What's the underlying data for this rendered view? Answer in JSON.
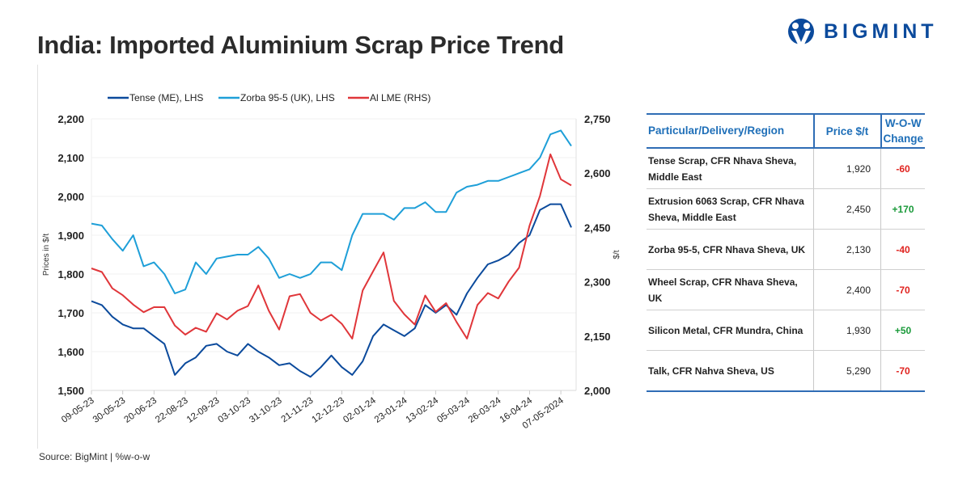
{
  "title": "India: Imported Aluminium Scrap Price Trend",
  "logo_text": "BIGMINT",
  "source": "Source: BigMint | %w-o-w",
  "colors": {
    "tense": "#0b4a9c",
    "zorba": "#1e9fd8",
    "lme": "#e0363a",
    "table_accent": "#2f6db5",
    "negative": "#e0231f",
    "positive": "#1a9a3a"
  },
  "chart_data": {
    "type": "line",
    "title": "",
    "ylabel_left": "Prices in $/t",
    "ylabel_right": "$/t",
    "ylim_left": [
      1500,
      2200
    ],
    "yticks_left": [
      "1,500",
      "1,600",
      "1,700",
      "1,800",
      "1,900",
      "2,000",
      "2,100",
      "2,200"
    ],
    "ylim_right": [
      2000,
      2750
    ],
    "yticks_right": [
      "2,000",
      "2,150",
      "2,300",
      "2,450",
      "2,600",
      "2,750"
    ],
    "x_tick_labels": [
      "09-05-23",
      "30-05-23",
      "20-06-23",
      "22-08-23",
      "12-09-23",
      "03-10-23",
      "31-10-23",
      "21-11-23",
      "12-12-23",
      "02-01-24",
      "23-01-24",
      "13-02-24",
      "05-03-24",
      "26-03-24",
      "16-04-24",
      "07-05-2024"
    ],
    "grid": true,
    "legend_position": "top",
    "series": [
      {
        "name": "Tense (ME), LHS",
        "axis": "left",
        "color": "#0b4a9c",
        "values": [
          1730,
          1720,
          1690,
          1670,
          1660,
          1660,
          1640,
          1620,
          1540,
          1570,
          1585,
          1615,
          1620,
          1600,
          1590,
          1620,
          1600,
          1585,
          1565,
          1570,
          1550,
          1535,
          1560,
          1590,
          1560,
          1540,
          1575,
          1640,
          1670,
          1655,
          1640,
          1660,
          1720,
          1700,
          1720,
          1695,
          1750,
          1790,
          1825,
          1835,
          1850,
          1880,
          1900,
          1965,
          1980,
          1980,
          1920
        ]
      },
      {
        "name": "Zorba 95-5 (UK), LHS",
        "axis": "left",
        "color": "#1e9fd8",
        "values": [
          1930,
          1925,
          1890,
          1860,
          1900,
          1820,
          1830,
          1800,
          1750,
          1760,
          1830,
          1800,
          1840,
          1845,
          1850,
          1850,
          1870,
          1840,
          1790,
          1800,
          1790,
          1800,
          1830,
          1830,
          1810,
          1900,
          1955,
          1955,
          1955,
          1940,
          1970,
          1970,
          1985,
          1960,
          1960,
          2010,
          2025,
          2030,
          2040,
          2040,
          2050,
          2060,
          2070,
          2100,
          2160,
          2170,
          2130
        ]
      },
      {
        "name": "Al LME (RHS)",
        "axis": "right",
        "color": "#e0363a",
        "values": [
          2337,
          2327,
          2282,
          2263,
          2237,
          2216,
          2230,
          2230,
          2179,
          2154,
          2173,
          2162,
          2213,
          2196,
          2220,
          2233,
          2290,
          2220,
          2168,
          2260,
          2266,
          2214,
          2193,
          2209,
          2184,
          2143,
          2276,
          2329,
          2381,
          2247,
          2210,
          2182,
          2262,
          2217,
          2241,
          2189,
          2143,
          2236,
          2269,
          2254,
          2301,
          2339,
          2455,
          2537,
          2652,
          2583,
          2566
        ]
      }
    ]
  },
  "table": {
    "headers": [
      "Particular/Delivery/Region",
      "Price $/t",
      "W-O-W Change"
    ],
    "rows": [
      {
        "item": "Tense Scrap, CFR Nhava Sheva, Middle East",
        "price": "1,920",
        "change": "-60"
      },
      {
        "item": "Extrusion 6063 Scrap, CFR Nhava Sheva, Middle East",
        "price": "2,450",
        "change": "+170"
      },
      {
        "item": "Zorba 95-5, CFR Nhava Sheva, UK",
        "price": "2,130",
        "change": "-40"
      },
      {
        "item": "Wheel Scrap, CFR Nhava Sheva, UK",
        "price": "2,400",
        "change": "-70"
      },
      {
        "item": "Silicon Metal, CFR Mundra, China",
        "price": "1,930",
        "change": "+50"
      },
      {
        "item": "Talk, CFR Nahva Sheva, US",
        "price": "5,290",
        "change": "-70"
      }
    ]
  }
}
